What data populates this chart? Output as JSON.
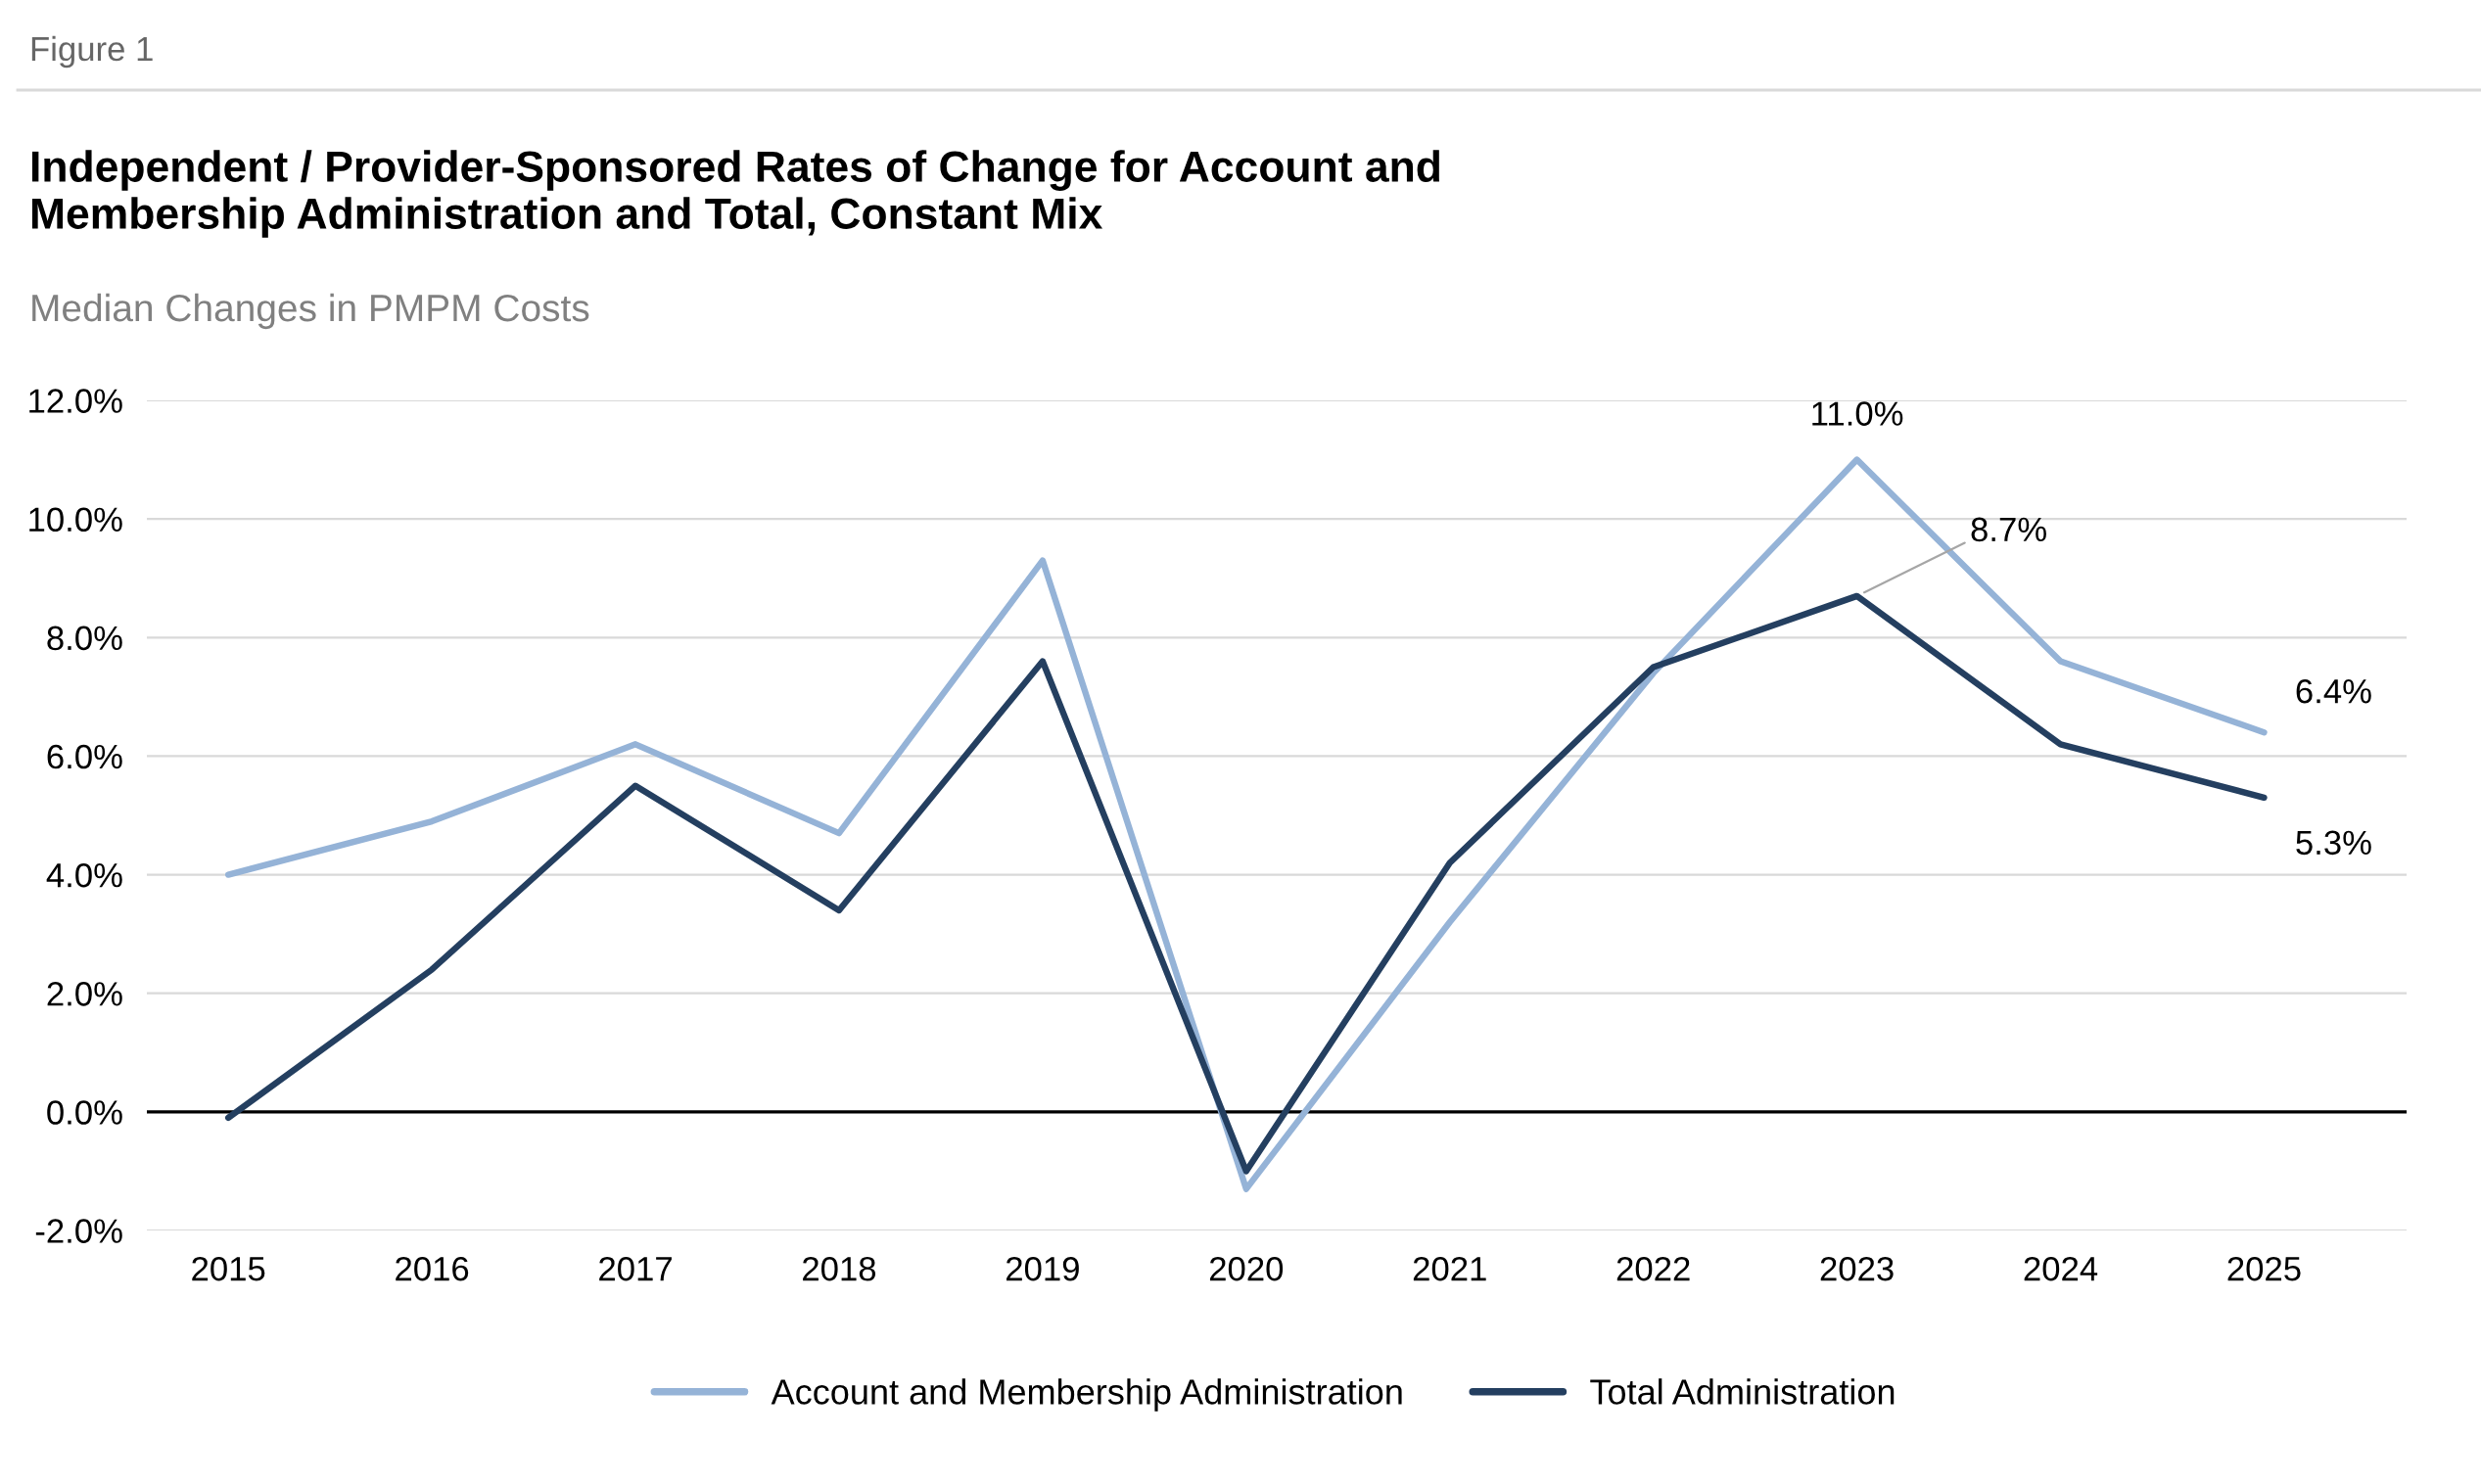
{
  "chart_data": {
    "type": "line",
    "title": "Independent / Provider-Sponsored Rates of Change for Account and Membership Administration and Total, Constant Mix",
    "subtitle": "Median Changes in PMPM Costs",
    "annotations": [
      "Figure 1"
    ],
    "categories": [
      "2015",
      "2016",
      "2017",
      "2018",
      "2019",
      "2020",
      "2021",
      "2022",
      "2023",
      "2024",
      "2025"
    ],
    "series": [
      {
        "name": "Account and Membership Administration",
        "color": "#95b3d7",
        "values": [
          4.0,
          4.9,
          6.2,
          4.7,
          9.3,
          -1.3,
          3.2,
          7.4,
          11.0,
          7.6,
          6.4
        ],
        "value_labels": [
          null,
          null,
          null,
          null,
          null,
          null,
          null,
          null,
          "11.0%",
          null,
          "6.4%"
        ]
      },
      {
        "name": "Total Administration",
        "color": "#243f60",
        "values": [
          -0.1,
          2.4,
          5.5,
          3.4,
          7.6,
          -1.0,
          4.2,
          7.5,
          8.7,
          6.2,
          5.3
        ],
        "value_labels": [
          null,
          null,
          null,
          null,
          null,
          null,
          null,
          null,
          "8.7%",
          null,
          "5.3%"
        ]
      }
    ],
    "ylim": [
      -2,
      12
    ],
    "yticks": [
      {
        "value": -2,
        "label": "-2.0%"
      },
      {
        "value": 0,
        "label": "0.0%"
      },
      {
        "value": 2,
        "label": "2.0%"
      },
      {
        "value": 4,
        "label": "4.0%"
      },
      {
        "value": 6,
        "label": "6.0%"
      },
      {
        "value": 8,
        "label": "8.0%"
      },
      {
        "value": 10,
        "label": "10.0%"
      },
      {
        "value": 12,
        "label": "12.0%"
      }
    ],
    "grid": "y",
    "legend": "bottom",
    "line_style": "solid",
    "ref_lines": [
      {
        "axis": "y",
        "value": 0,
        "color": "#000000"
      }
    ]
  }
}
